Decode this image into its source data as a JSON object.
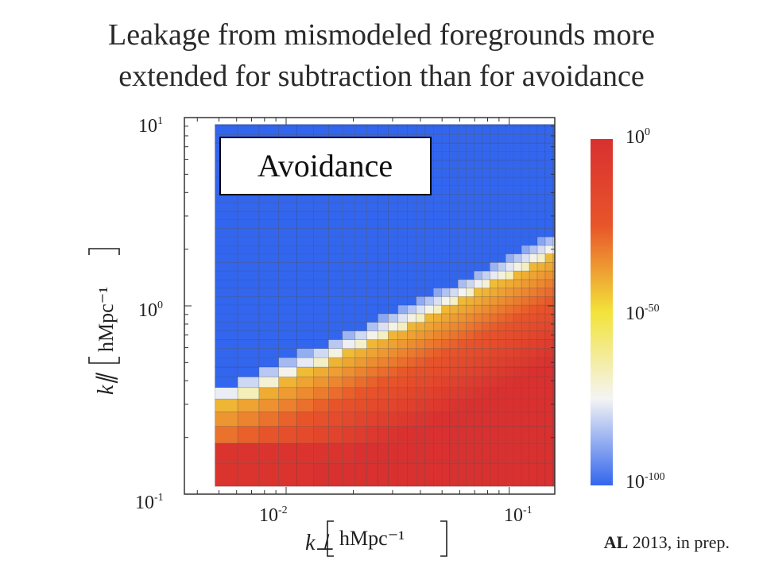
{
  "title": {
    "line1": "Leakage from mismodeled foregrounds more",
    "line2": "extended for subtraction than for avoidance"
  },
  "chart_data": {
    "type": "heatmap",
    "inset_label": "Avoidance",
    "x_axis": {
      "label": "k⊥",
      "unit": "hMpc⁻¹",
      "scale": "log",
      "range": [
        0.0035,
        0.16
      ],
      "ticks": [
        {
          "base": "10",
          "exp": "-2",
          "value": 0.01
        },
        {
          "base": "10",
          "exp": "-1",
          "value": 0.1
        }
      ]
    },
    "y_axis": {
      "label": "k∥",
      "unit": "hMpc⁻¹",
      "scale": "log",
      "range": [
        0.1,
        10
      ],
      "ticks": [
        {
          "base": "10",
          "exp": "1",
          "value": 10
        },
        {
          "base": "10",
          "exp": "0",
          "value": 1
        },
        {
          "base": "10",
          "exp": "-1",
          "value": 0.1
        }
      ]
    },
    "colorbar": {
      "scale": "log",
      "range": [
        1e-100,
        1
      ],
      "ticks": [
        {
          "base": "10",
          "exp": "0",
          "value": 1
        },
        {
          "base": "10",
          "exp": "-50",
          "value": 1e-50
        },
        {
          "base": "10",
          "exp": "-100",
          "value": 1e-100
        }
      ],
      "colors": [
        "#3366ee",
        "#f4f4f4",
        "#f3e33a",
        "#e8552a",
        "#d93030"
      ]
    },
    "description_values": {
      "boundary_kpar_at_min_kperp": 0.3,
      "boundary_kpar_at_max_kperp": 2.0,
      "deep_region_kpar_max": 0.2,
      "value_below_boundary": "1e0 to 1e-40",
      "value_above_boundary": "1e-100"
    }
  },
  "credit": {
    "author": "AL",
    "rest": "2013, in prep."
  }
}
